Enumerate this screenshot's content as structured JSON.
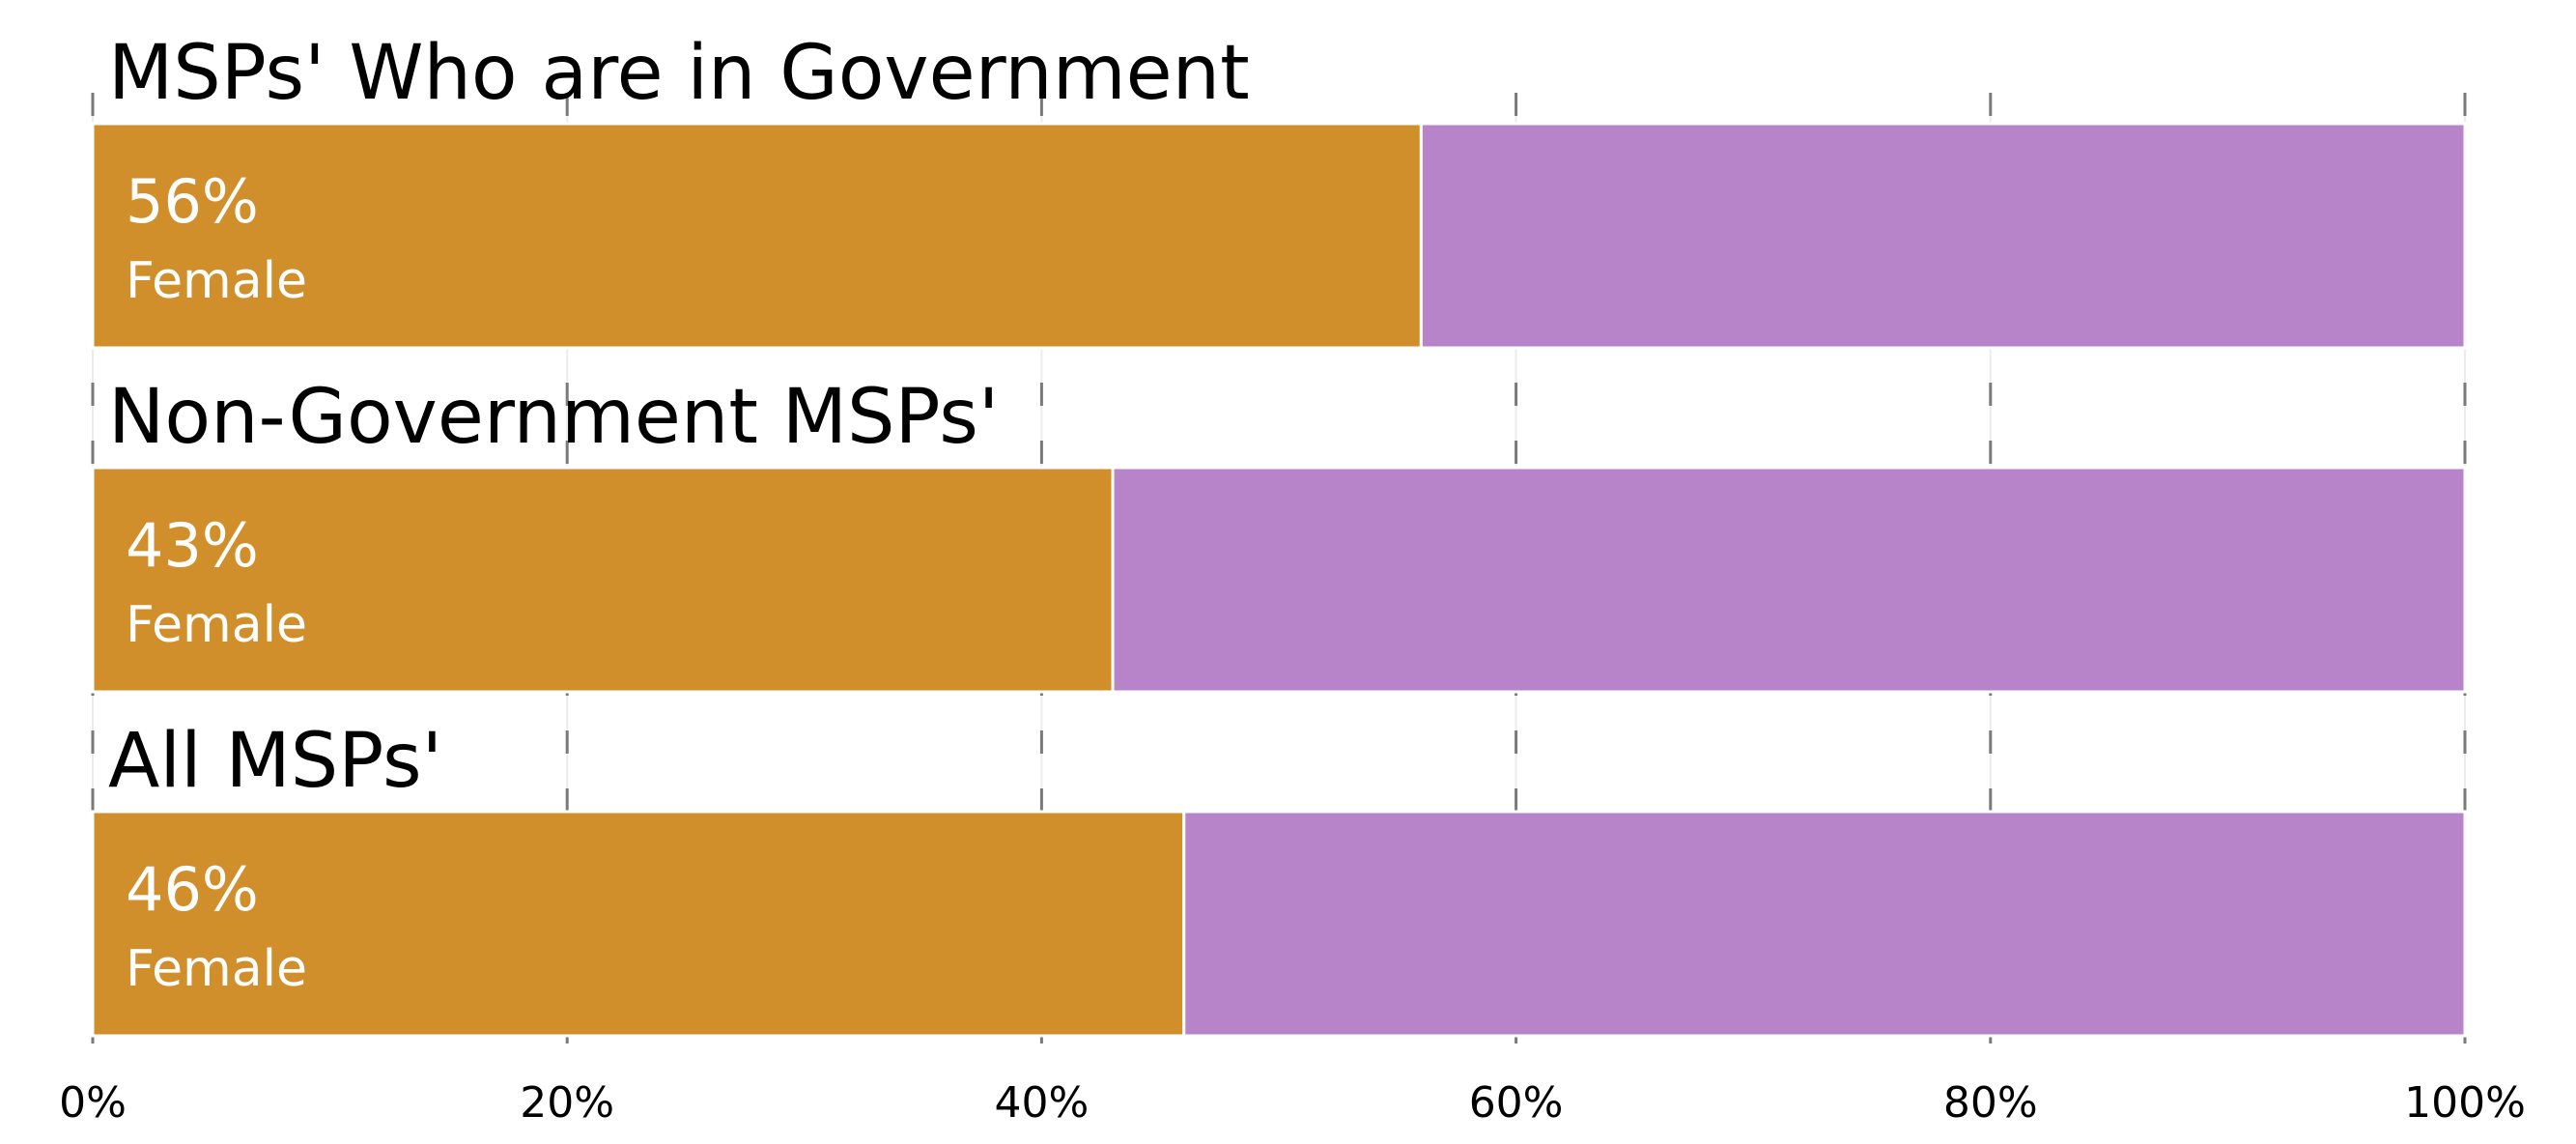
{
  "chart_data": {
    "type": "bar",
    "orientation": "horizontal",
    "stacked": true,
    "categories": [
      "MSPs' Who are in Government",
      "Non-Government MSPs'",
      "All MSPs'"
    ],
    "series": [
      {
        "name": "Female",
        "values": [
          56,
          43,
          46
        ],
        "color": "#d08f2b"
      },
      {
        "values": [
          44,
          57,
          54
        ],
        "color": "#b784c9"
      }
    ],
    "value_labels": [
      "56%",
      "43%",
      "46%"
    ],
    "segment_label": "Female",
    "x_ticks": [
      "0%",
      "20%",
      "40%",
      "60%",
      "80%",
      "100%"
    ],
    "x_tick_values": [
      0,
      20,
      40,
      60,
      80,
      100
    ],
    "xlim": [
      0,
      100
    ],
    "grid": true,
    "legend": "none",
    "title": "",
    "xlabel": "",
    "ylabel": ""
  }
}
